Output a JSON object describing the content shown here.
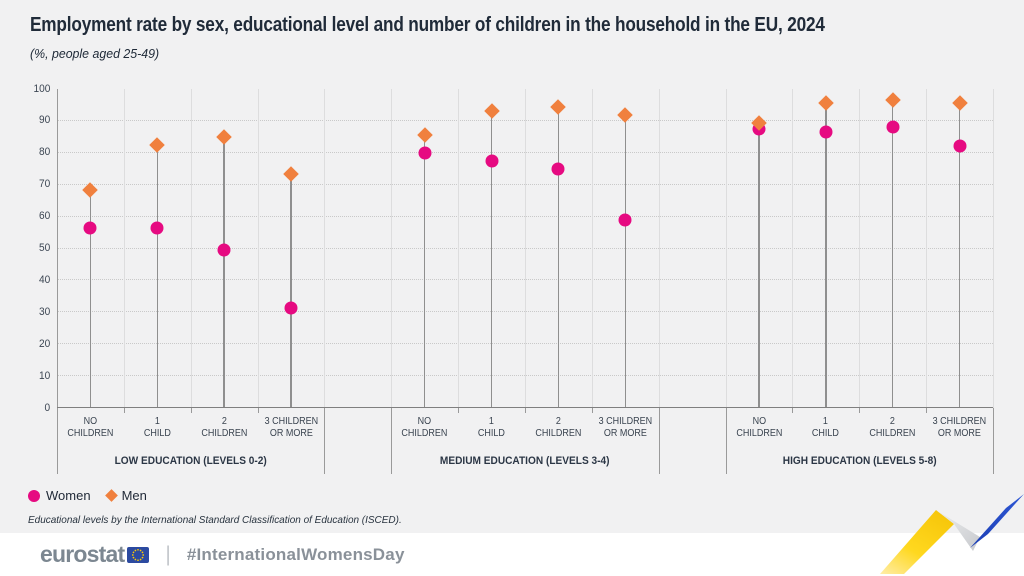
{
  "chart_data": {
    "type": "scatter",
    "title": "Employment rate by sex, educational level and number of children in the household in the EU, 2024",
    "subtitle": "(%, people aged 25-49)",
    "unit": "%",
    "ylim": [
      0,
      100
    ],
    "yticks": [
      0,
      10,
      20,
      30,
      40,
      50,
      60,
      70,
      80,
      90,
      100
    ],
    "grid": "horizontal dotted",
    "legend_position": "bottom-left",
    "legend": [
      {
        "label": "Women",
        "marker": "circle"
      },
      {
        "label": "Men",
        "marker": "diamond"
      }
    ],
    "groups": [
      {
        "label": "LOW EDUCATION (LEVELS 0-2)",
        "categories": [
          [
            "NO",
            "CHILDREN"
          ],
          [
            "1",
            "CHILD"
          ],
          [
            "2",
            "CHILDREN"
          ],
          [
            "3 CHILDREN",
            "OR MORE"
          ]
        ],
        "series": [
          {
            "name": "Women",
            "values": [
              56.5,
              56.5,
              49.5,
              31.5
            ]
          },
          {
            "name": "Men",
            "values": [
              68.5,
              82.5,
              85,
              73.5
            ]
          }
        ]
      },
      {
        "label": "MEDIUM EDUCATION (LEVELS 3-4)",
        "categories": [
          [
            "NO",
            "CHILDREN"
          ],
          [
            "1",
            "CHILD"
          ],
          [
            "2",
            "CHILDREN"
          ],
          [
            "3 CHILDREN",
            "OR MORE"
          ]
        ],
        "series": [
          {
            "name": "Women",
            "values": [
              80,
              77.5,
              75,
              59
            ]
          },
          {
            "name": "Men",
            "values": [
              85.5,
              93,
              94.5,
              92
            ]
          }
        ]
      },
      {
        "label": "HIGH EDUCATION (LEVELS 5-8)",
        "categories": [
          [
            "NO",
            "CHILDREN"
          ],
          [
            "1",
            "CHILD"
          ],
          [
            "2",
            "CHILDREN"
          ],
          [
            "3 CHILDREN",
            "OR MORE"
          ]
        ],
        "series": [
          {
            "name": "Women",
            "values": [
              87.5,
              86.5,
              88,
              82
            ]
          },
          {
            "name": "Men",
            "values": [
              89.5,
              95.5,
              96.5,
              95.5
            ]
          }
        ]
      }
    ]
  },
  "footnote": "Educational levels by the International Standard Classification of Education (ISCED).",
  "footer": {
    "logo_text": "eurostat",
    "divider": "|",
    "hashtag": "#InternationalWomensDay"
  },
  "colors": {
    "women": "#E60A81",
    "men": "#F0803E",
    "background": "#F1F1F2",
    "title_text": "#202B39",
    "label_text": "#3C4653",
    "logo_grey": "#7C8791",
    "flag_blue": "#2C4AA0",
    "star_yellow": "#FFCC00",
    "ribbon_yellow": "#FFD211",
    "ribbon_blue": "#2349C7"
  }
}
